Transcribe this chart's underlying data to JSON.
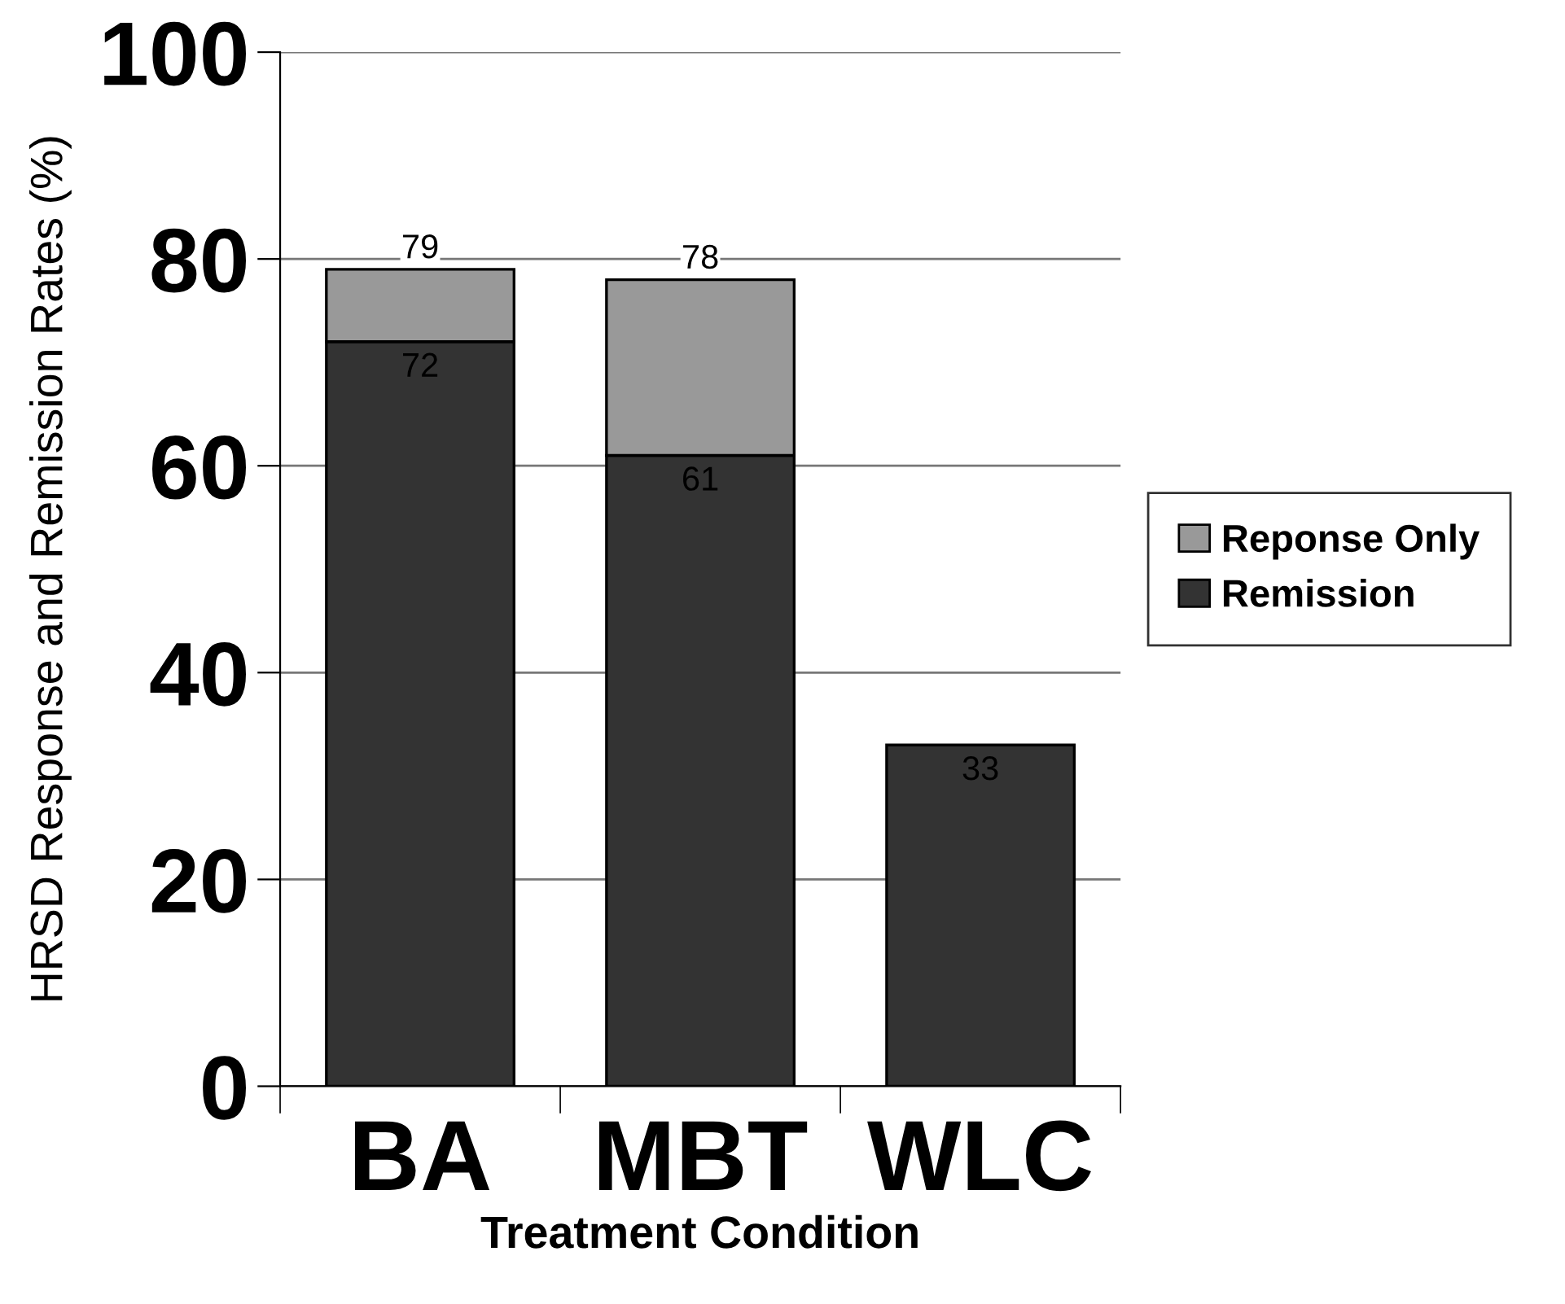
{
  "chart_data": {
    "type": "bar",
    "stacked": true,
    "categories": [
      "BA",
      "MBT",
      "WLC"
    ],
    "xlabel": "Treatment Condition",
    "ylabel": "HRSD Response and Remission Rates (%)",
    "series": [
      {
        "name": "Remission",
        "color": "#333333",
        "values": [
          72,
          61,
          33
        ],
        "value_labels": [
          "72",
          "61",
          "33"
        ]
      },
      {
        "name": "Reponse Only",
        "color": "#999999",
        "values": [
          7,
          17,
          0
        ]
      }
    ],
    "totals": [
      "79",
      "78",
      null
    ],
    "ylim": [
      0,
      100
    ],
    "yticks": [
      0,
      20,
      40,
      60,
      80,
      100
    ],
    "grid": "y",
    "legend": "right"
  }
}
